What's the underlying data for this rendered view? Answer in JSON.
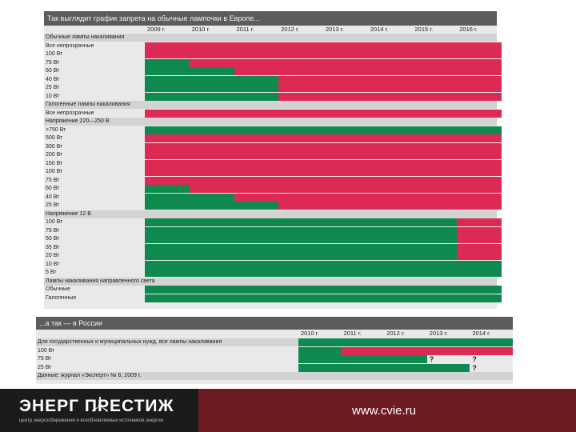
{
  "europe": {
    "title": "Так выглядит график запрета на обычные лампочки в Европе...",
    "years": [
      "2009 г.",
      "2010 г.",
      "2011 г.",
      "2012 г.",
      "2013 г.",
      "2014 г.",
      "2015 г.",
      "2016 г."
    ],
    "rows": [
      {
        "label": "Обычные лампы накаливания",
        "header": true,
        "bars": []
      },
      {
        "label": "Все непрозрачные",
        "bars": [
          [
            "red",
            0,
            8
          ]
        ]
      },
      {
        "label": "100 Вт",
        "bars": [
          [
            "red",
            0,
            8
          ]
        ]
      },
      {
        "label": "75 Вт",
        "bars": [
          [
            "green",
            0,
            1
          ],
          [
            "red",
            1,
            8
          ]
        ]
      },
      {
        "label": "60 Вт",
        "bars": [
          [
            "green",
            0,
            2
          ],
          [
            "red",
            2,
            8
          ]
        ]
      },
      {
        "label": "40 Вт",
        "bars": [
          [
            "green",
            0,
            3
          ],
          [
            "red",
            3,
            8
          ]
        ]
      },
      {
        "label": "25 Вт",
        "bars": [
          [
            "green",
            0,
            3
          ],
          [
            "red",
            3,
            8
          ]
        ]
      },
      {
        "label": "10 Вт",
        "bars": [
          [
            "green",
            0,
            3
          ],
          [
            "red",
            3,
            8
          ]
        ]
      },
      {
        "label": "Галогенные лампы накаливания",
        "header": true,
        "bars": []
      },
      {
        "label": "Все непрозрачные",
        "bars": [
          [
            "red",
            0,
            8
          ]
        ]
      },
      {
        "label": "Напряжение 220—250 В",
        "header": true,
        "bars": []
      },
      {
        "label": ">750 Вт",
        "bars": [
          [
            "green",
            0,
            8
          ]
        ]
      },
      {
        "label": "500 Вт",
        "bars": [
          [
            "red",
            0,
            8
          ]
        ]
      },
      {
        "label": "300 Вт",
        "bars": [
          [
            "red",
            0,
            8
          ]
        ]
      },
      {
        "label": "200 Вт",
        "bars": [
          [
            "red",
            0,
            8
          ]
        ]
      },
      {
        "label": "150 Вт",
        "bars": [
          [
            "red",
            0,
            8
          ]
        ]
      },
      {
        "label": "100 Вт",
        "bars": [
          [
            "red",
            0,
            8
          ]
        ]
      },
      {
        "label": "75 Вт",
        "bars": [
          [
            "red",
            0,
            8
          ]
        ]
      },
      {
        "label": "60 Вт",
        "bars": [
          [
            "green",
            0,
            1
          ],
          [
            "red",
            1,
            8
          ]
        ]
      },
      {
        "label": "40 Вт",
        "bars": [
          [
            "green",
            0,
            2
          ],
          [
            "red",
            2,
            8
          ]
        ]
      },
      {
        "label": "25 Вт",
        "bars": [
          [
            "green",
            0,
            3
          ],
          [
            "red",
            3,
            8
          ]
        ]
      },
      {
        "label": "Напряжение 12 В",
        "header": true,
        "bars": []
      },
      {
        "label": "100 Вт",
        "bars": [
          [
            "green",
            0,
            7
          ],
          [
            "red",
            7,
            8
          ]
        ]
      },
      {
        "label": "75 Вт",
        "bars": [
          [
            "green",
            0,
            7
          ],
          [
            "red",
            7,
            8
          ]
        ]
      },
      {
        "label": "50 Вт",
        "bars": [
          [
            "green",
            0,
            7
          ],
          [
            "red",
            7,
            8
          ]
        ]
      },
      {
        "label": "35 Вт",
        "bars": [
          [
            "green",
            0,
            7
          ],
          [
            "red",
            7,
            8
          ]
        ]
      },
      {
        "label": "20 Вт",
        "bars": [
          [
            "green",
            0,
            7
          ],
          [
            "red",
            7,
            8
          ]
        ]
      },
      {
        "label": "10 Вт",
        "bars": [
          [
            "green",
            0,
            8
          ]
        ]
      },
      {
        "label": "5 Вт",
        "bars": [
          [
            "green",
            0,
            8
          ]
        ]
      },
      {
        "label": "Лампы накаливания направленного света",
        "header": true,
        "bars": []
      },
      {
        "label": "Обычные",
        "bars": [
          [
            "green",
            0,
            8
          ]
        ]
      },
      {
        "label": "Галогенные",
        "bars": [
          [
            "green",
            0,
            8
          ]
        ]
      }
    ]
  },
  "russia": {
    "title": "...а так — в России",
    "years": [
      "2010 г.",
      "2011 г.",
      "2012 г.",
      "2013 г.",
      "2014 г."
    ],
    "rows": [
      {
        "label": "Для государственных и муниципальных нужд, все лампы накаливания",
        "header": true,
        "bars": [
          [
            "green",
            0,
            5
          ]
        ]
      },
      {
        "label": "100 Вт",
        "bars": [
          [
            "green",
            0,
            1
          ],
          [
            "red",
            1,
            5
          ]
        ]
      },
      {
        "label": "75 Вт",
        "bars": [
          [
            "green",
            0,
            3
          ]
        ],
        "marks": [
          [
            3,
            "?"
          ],
          [
            4,
            "?"
          ]
        ]
      },
      {
        "label": "25 Вт",
        "bars": [
          [
            "green",
            0,
            4
          ]
        ],
        "marks": [
          [
            4,
            "?"
          ]
        ]
      },
      {
        "label": "Данные: журнал «Эксперт» № 6, 2009 г.",
        "header": true,
        "bars": []
      }
    ]
  },
  "colors": {
    "banned": "#dc2a55",
    "allowed": "#0e8a4e"
  },
  "footer": {
    "logo": "ЭНЕРГ ПРЕСТИЖ",
    "logo_icon": "wind-turbine-icon",
    "tagline": "центр энергосбережения и возобновляемых источников энергии",
    "url": "www.cvie.ru"
  }
}
